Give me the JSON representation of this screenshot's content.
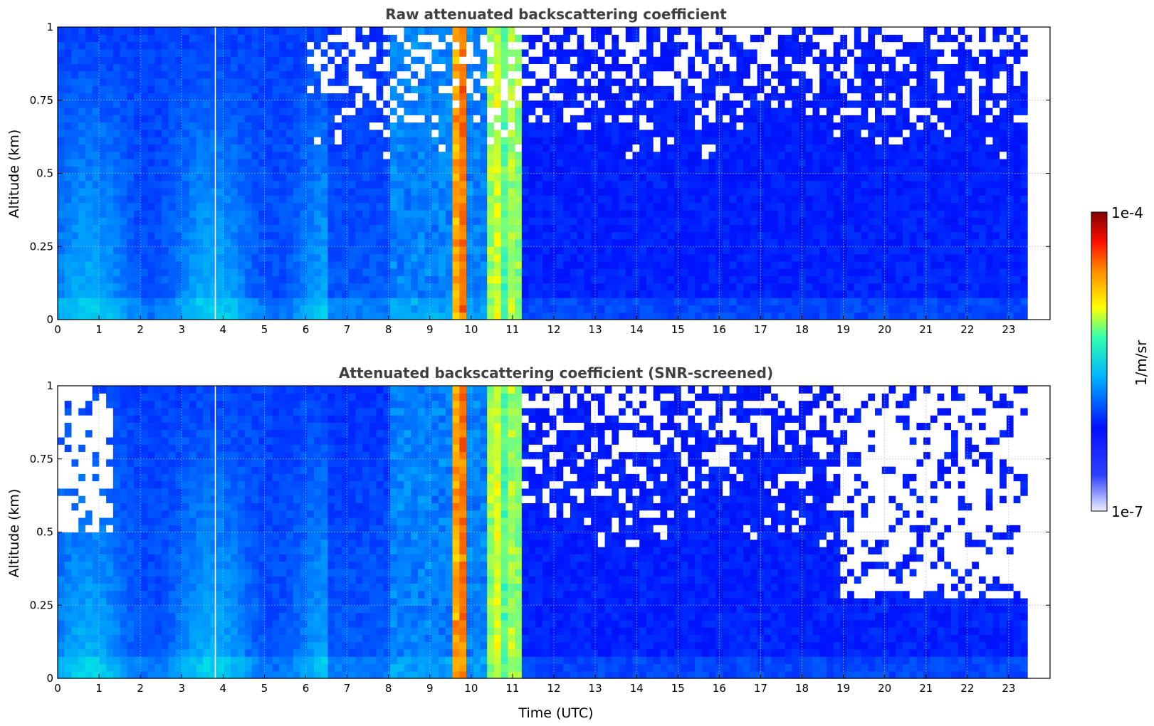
{
  "chart_data": [
    {
      "type": "heatmap",
      "title": "Raw attenuated backscattering coefficient",
      "xlabel": "",
      "ylabel": "Altitude (km)",
      "xlim": [
        0,
        24
      ],
      "ylim": [
        0,
        1
      ],
      "x_ticks": [
        "0",
        "1",
        "2",
        "3",
        "4",
        "5",
        "6",
        "7",
        "8",
        "9",
        "10",
        "11",
        "12",
        "13",
        "14",
        "15",
        "16",
        "17",
        "18",
        "19",
        "20",
        "21",
        "22",
        "23"
      ],
      "y_ticks": [
        "0",
        "0.25",
        "0.5",
        "0.75",
        "1"
      ],
      "data_time_range_utc": [
        0,
        23.45
      ],
      "grid": true,
      "colorscale": "jet",
      "notes_features": {
        "intense_columns_utc": [
          9.65,
          9.8,
          10.55,
          10.7,
          11.05
        ],
        "moderate_columns_utc_range": [
          8.0,
          11.2
        ],
        "dropout_column_utc": 3.8
      }
    },
    {
      "type": "heatmap",
      "title": "Attenuated backscattering coefficient (SNR-screened)",
      "xlabel": "Time (UTC)",
      "ylabel": "Altitude (km)",
      "xlim": [
        0,
        24
      ],
      "ylim": [
        0,
        1
      ],
      "x_ticks": [
        "0",
        "1",
        "2",
        "3",
        "4",
        "5",
        "6",
        "7",
        "8",
        "9",
        "10",
        "11",
        "12",
        "13",
        "14",
        "15",
        "16",
        "17",
        "18",
        "19",
        "20",
        "21",
        "22",
        "23"
      ],
      "y_ticks": [
        "0",
        "0.25",
        "0.5",
        "0.75",
        "1"
      ],
      "data_time_range_utc": [
        0,
        23.45
      ],
      "grid": true,
      "colorscale": "jet",
      "notes_features": {
        "screened_upper_region_utc_range": [
          19,
          23.45
        ],
        "screened_floor_km": 0.25,
        "screened_early_columns_utc_range": [
          0,
          1.3
        ]
      }
    }
  ],
  "colorbar": {
    "label": "1/m/sr",
    "max_label": "1e-4",
    "min_label": "1e-7",
    "scale": "log",
    "range": [
      1e-07,
      0.0001
    ],
    "placement": "right"
  },
  "colors": {
    "title_text": "#404040",
    "grid": "#b8b8b8",
    "background_low": "#0a1ef0",
    "colormap_stops": [
      "#e8e8ff",
      "#0000ff",
      "#00c8ff",
      "#ffff00",
      "#ff3000",
      "#800000"
    ]
  }
}
